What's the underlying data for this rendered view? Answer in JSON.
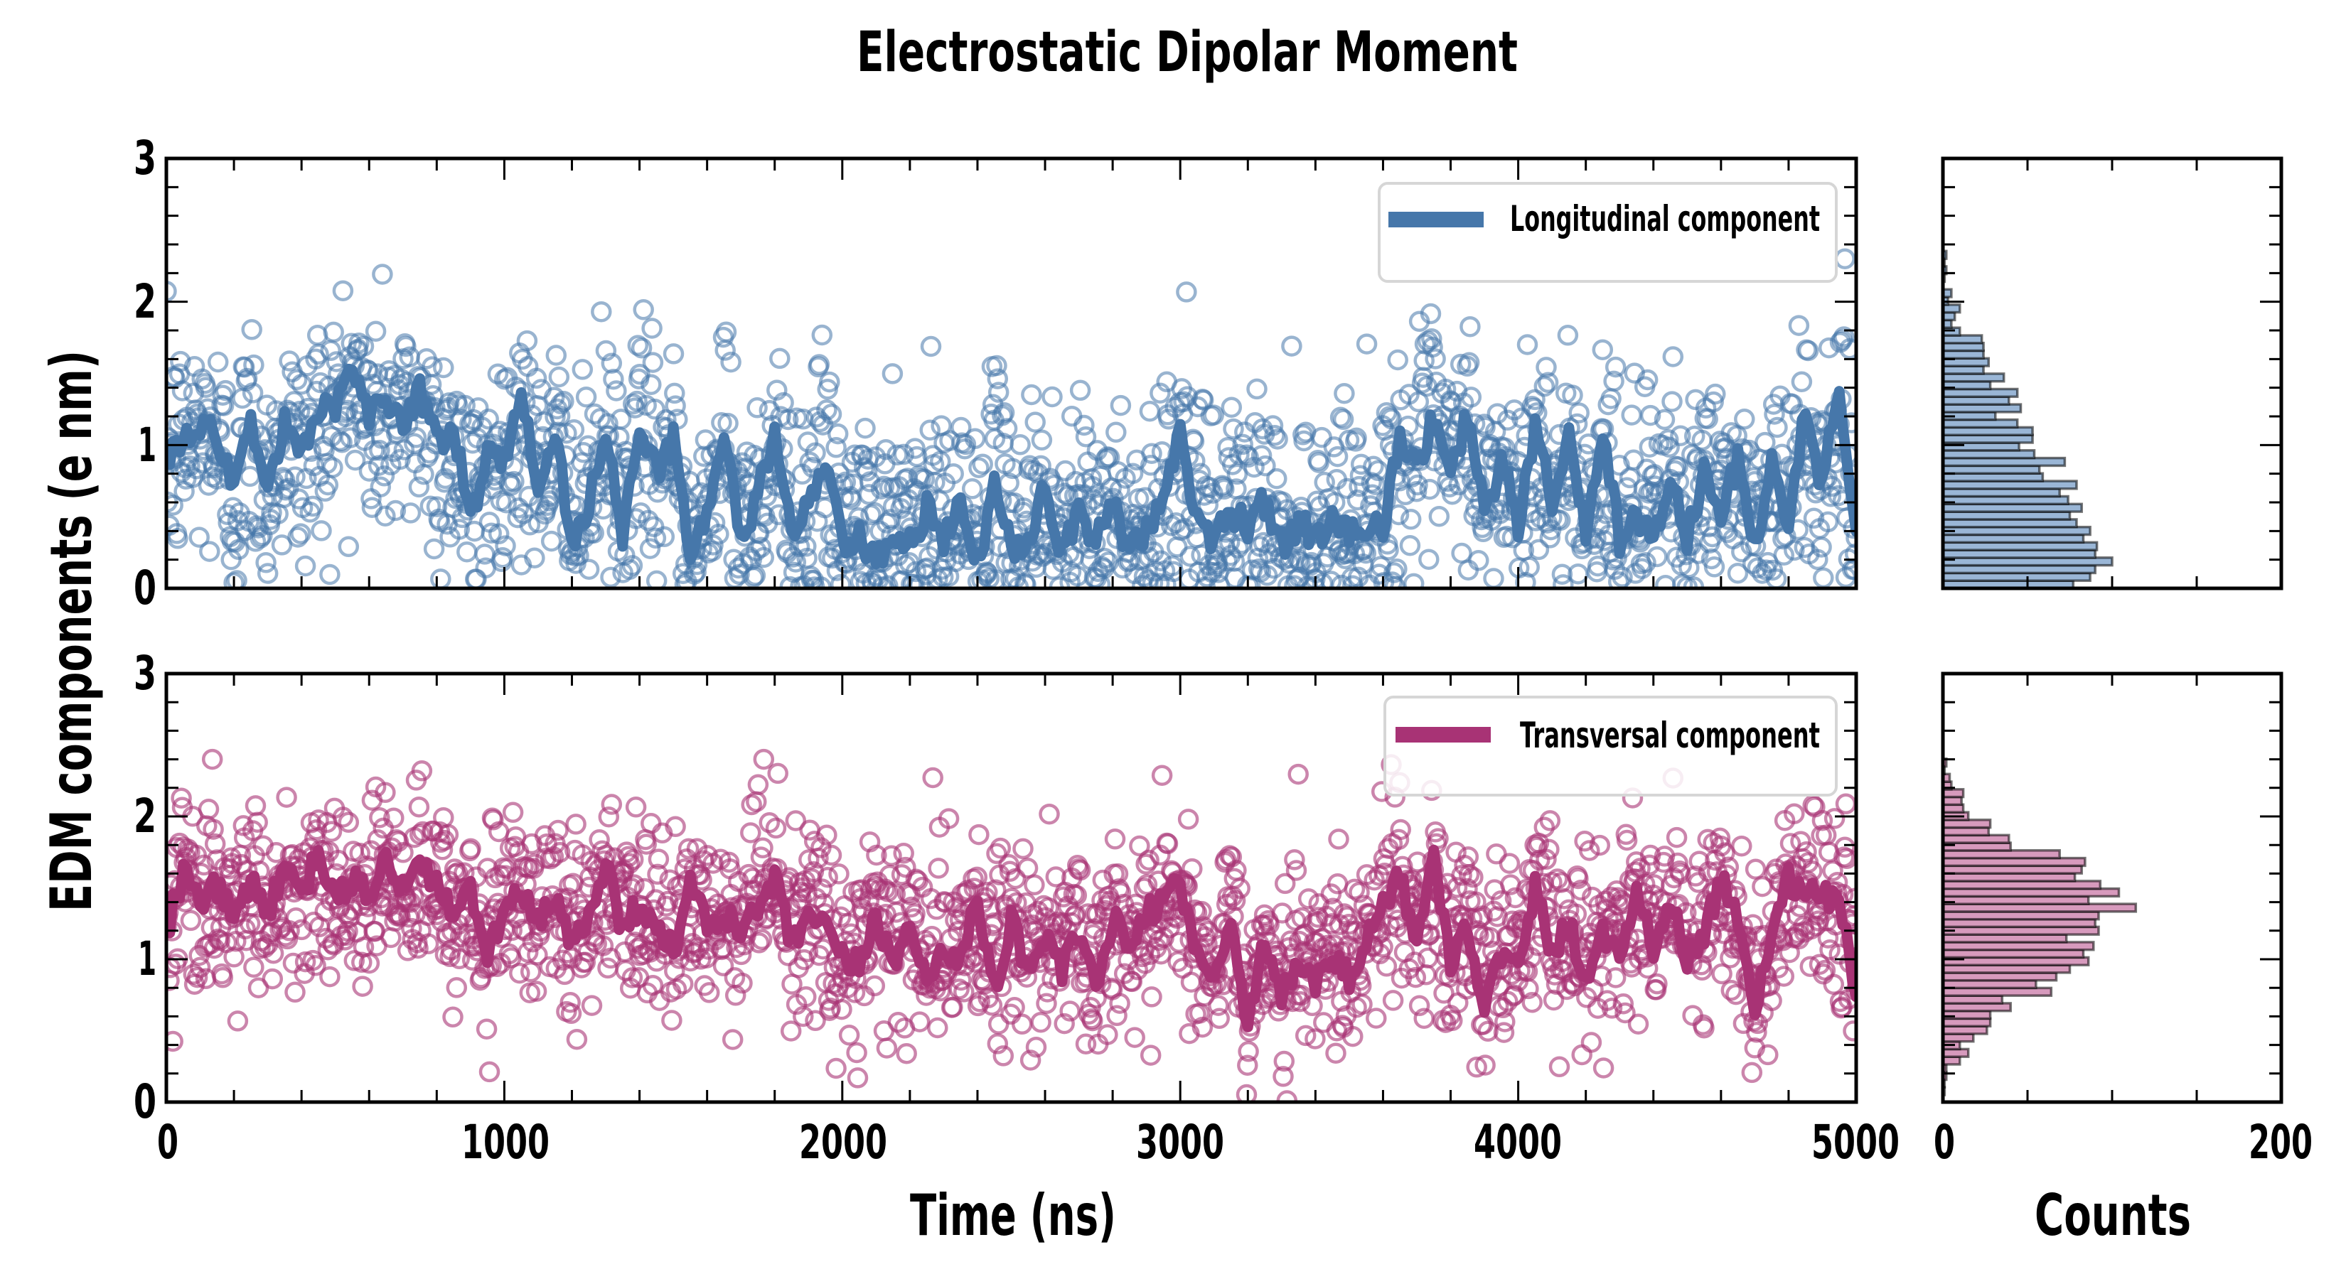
{
  "chart_data": [
    {
      "type": "scatter+line",
      "panel": "top-timeseries",
      "title": "Electrostatic Dipolar Moment",
      "xlabel": "Time (ns)",
      "ylabel": "EDM components (e nm)",
      "xlim": [
        0,
        5000
      ],
      "ylim": [
        0,
        3
      ],
      "xticks": [
        "0",
        "1000",
        "2000",
        "3000",
        "4000",
        "5000"
      ],
      "yticks": [
        "0",
        "1",
        "2",
        "3"
      ],
      "legend": {
        "label": "Longitudinal component",
        "position": "top-right"
      },
      "color": "#4677aa",
      "smoothed_line": {
        "x": [
          0,
          50,
          100,
          150,
          200,
          250,
          300,
          350,
          400,
          450,
          500,
          550,
          600,
          650,
          700,
          750,
          800,
          850,
          900,
          950,
          1000,
          1050,
          1100,
          1150,
          1200,
          1250,
          1300,
          1350,
          1400,
          1450,
          1500,
          1550,
          1600,
          1650,
          1700,
          1750,
          1800,
          1850,
          1900,
          1950,
          2000,
          2050,
          2100,
          2150,
          2200,
          2250,
          2300,
          2350,
          2400,
          2450,
          2500,
          2550,
          2600,
          2650,
          2700,
          2750,
          2800,
          2850,
          2900,
          2950,
          3000,
          3050,
          3100,
          3150,
          3200,
          3250,
          3300,
          3350,
          3400,
          3450,
          3500,
          3550,
          3600,
          3650,
          3700,
          3750,
          3800,
          3850,
          3900,
          3950,
          4000,
          4050,
          4100,
          4150,
          4200,
          4250,
          4300,
          4350,
          4400,
          4450,
          4500,
          4550,
          4600,
          4650,
          4700,
          4750,
          4800,
          4850,
          4900,
          4950,
          5000
        ],
        "y": [
          0.95,
          1.0,
          1.15,
          1.05,
          0.65,
          1.2,
          0.7,
          1.15,
          0.9,
          1.2,
          1.3,
          1.6,
          1.2,
          1.35,
          1.15,
          1.4,
          1.0,
          1.1,
          0.5,
          0.9,
          0.9,
          1.3,
          0.75,
          1.1,
          0.3,
          0.6,
          1.15,
          0.4,
          1.05,
          0.8,
          1.05,
          0.25,
          0.55,
          1.05,
          0.3,
          0.65,
          1.1,
          0.35,
          0.6,
          0.85,
          0.3,
          0.35,
          0.15,
          0.4,
          0.3,
          0.55,
          0.3,
          0.6,
          0.15,
          0.7,
          0.3,
          0.35,
          0.75,
          0.25,
          0.55,
          0.3,
          0.6,
          0.25,
          0.4,
          0.7,
          1.05,
          0.45,
          0.3,
          0.55,
          0.45,
          0.6,
          0.3,
          0.45,
          0.35,
          0.5,
          0.35,
          0.45,
          0.4,
          1.1,
          0.8,
          1.2,
          0.75,
          1.25,
          0.5,
          0.9,
          0.45,
          1.1,
          0.6,
          1.05,
          0.35,
          1.05,
          0.35,
          0.55,
          0.3,
          0.75,
          0.35,
          0.8,
          0.5,
          0.9,
          0.3,
          0.85,
          0.4,
          1.3,
          0.7,
          1.45,
          0.3
        ]
      },
      "scatter": {
        "n_points": 1800,
        "marker": "open-circle",
        "range": [
          0,
          2.3
        ]
      }
    },
    {
      "type": "scatter+line",
      "panel": "bottom-timeseries",
      "xlabel": "Time (ns)",
      "ylabel": "EDM components (e nm)",
      "xlim": [
        0,
        5000
      ],
      "ylim": [
        0,
        3
      ],
      "xticks": [
        "0",
        "1000",
        "2000",
        "3000",
        "4000",
        "5000"
      ],
      "yticks": [
        "0",
        "1",
        "2",
        "3"
      ],
      "legend": {
        "label": "Transversal component",
        "position": "top-right"
      },
      "color": "#a83375",
      "smoothed_line": {
        "x": [
          0,
          50,
          100,
          150,
          200,
          250,
          300,
          350,
          400,
          450,
          500,
          550,
          600,
          650,
          700,
          750,
          800,
          850,
          900,
          950,
          1000,
          1050,
          1100,
          1150,
          1200,
          1250,
          1300,
          1350,
          1400,
          1450,
          1500,
          1550,
          1600,
          1650,
          1700,
          1750,
          1800,
          1850,
          1900,
          1950,
          2000,
          2050,
          2100,
          2150,
          2200,
          2250,
          2300,
          2350,
          2400,
          2450,
          2500,
          2550,
          2600,
          2650,
          2700,
          2750,
          2800,
          2850,
          2900,
          2950,
          3000,
          3050,
          3100,
          3150,
          3200,
          3250,
          3300,
          3350,
          3400,
          3450,
          3500,
          3550,
          3600,
          3650,
          3700,
          3750,
          3800,
          3850,
          3900,
          3950,
          4000,
          4050,
          4100,
          4150,
          4200,
          4250,
          4300,
          4350,
          4400,
          4450,
          4500,
          4550,
          4600,
          4650,
          4700,
          4750,
          4800,
          4850,
          4900,
          4950,
          5000
        ],
        "y": [
          1.2,
          1.6,
          1.4,
          1.5,
          1.3,
          1.55,
          1.35,
          1.6,
          1.45,
          1.75,
          1.4,
          1.55,
          1.45,
          1.7,
          1.5,
          1.65,
          1.55,
          1.3,
          1.45,
          1.05,
          1.35,
          1.45,
          1.25,
          1.4,
          1.1,
          1.3,
          1.7,
          1.2,
          1.4,
          1.25,
          1.05,
          1.5,
          1.25,
          1.3,
          1.2,
          1.35,
          1.55,
          1.1,
          1.3,
          1.2,
          1.0,
          0.95,
          1.3,
          1.0,
          1.2,
          0.85,
          1.1,
          1.0,
          1.4,
          0.8,
          1.25,
          0.95,
          1.15,
          0.9,
          1.2,
          0.75,
          1.3,
          1.05,
          1.3,
          1.45,
          1.55,
          1.0,
          0.85,
          1.3,
          0.55,
          1.15,
          0.75,
          1.0,
          0.8,
          1.05,
          0.85,
          1.1,
          1.4,
          1.6,
          1.1,
          1.7,
          1.0,
          1.25,
          0.65,
          1.05,
          0.9,
          1.5,
          1.05,
          1.25,
          0.85,
          1.2,
          1.05,
          1.45,
          1.1,
          1.4,
          1.0,
          1.2,
          1.55,
          1.3,
          0.7,
          1.1,
          1.55,
          1.4,
          1.5,
          1.35,
          0.8
        ]
      },
      "scatter": {
        "n_points": 1800,
        "marker": "open-circle",
        "range": [
          0,
          2.4
        ]
      }
    },
    {
      "type": "histogram-horizontal",
      "panel": "top-histogram",
      "xlabel": "Counts",
      "xlim": [
        0,
        200
      ],
      "xticks": [
        "0",
        "200"
      ],
      "ylim": [
        0,
        3
      ],
      "bin_width": 0.0535,
      "color": "#4677aa",
      "bin_start": 0.0,
      "counts_from_bottom": [
        77,
        87,
        90,
        100,
        90,
        91,
        83,
        87,
        79,
        75,
        82,
        74,
        69,
        79,
        59,
        57,
        72,
        54,
        45,
        53,
        53,
        44,
        31,
        46,
        39,
        44,
        28,
        36,
        24,
        27,
        24,
        24,
        23,
        10,
        5,
        7,
        10,
        3,
        5,
        0,
        1,
        2,
        1,
        2
      ]
    },
    {
      "type": "histogram-horizontal",
      "panel": "bottom-histogram",
      "xlabel": "Counts",
      "xlim": [
        0,
        200
      ],
      "xticks": [
        "0",
        "200"
      ],
      "ylim": [
        0,
        3
      ],
      "bin_width": 0.0535,
      "color": "#a83375",
      "bin_start": 0.05,
      "counts_from_bottom": [
        1,
        1,
        2,
        2,
        10,
        15,
        10,
        18,
        26,
        28,
        28,
        40,
        35,
        64,
        55,
        67,
        75,
        86,
        83,
        89,
        73,
        92,
        90,
        92,
        114,
        86,
        104,
        93,
        78,
        82,
        84,
        69,
        40,
        39,
        27,
        28,
        15,
        12,
        11,
        12,
        5,
        4,
        1,
        2
      ]
    }
  ],
  "labels": {
    "title": "Electrostatic Dipolar Moment",
    "ylabel": "EDM components (e nm)",
    "xlabel_time": "Time (ns)",
    "xlabel_counts": "Counts",
    "legend_top": "Longitudinal component",
    "legend_bottom": "Transversal component",
    "ytick_top": [
      "0",
      "1",
      "2",
      "3"
    ],
    "ytick_bottom": [
      "0",
      "1",
      "2",
      "3"
    ],
    "xtick_time": [
      "0",
      "1000",
      "2000",
      "3000",
      "4000",
      "5000"
    ],
    "xtick_counts": [
      "0",
      "200"
    ]
  },
  "colors": {
    "longitudinal": "#4677aa",
    "longitudinal_hist": "#9ab6d6",
    "transversal": "#a83375",
    "transversal_hist": "#d79abd",
    "axis": "#000000"
  }
}
